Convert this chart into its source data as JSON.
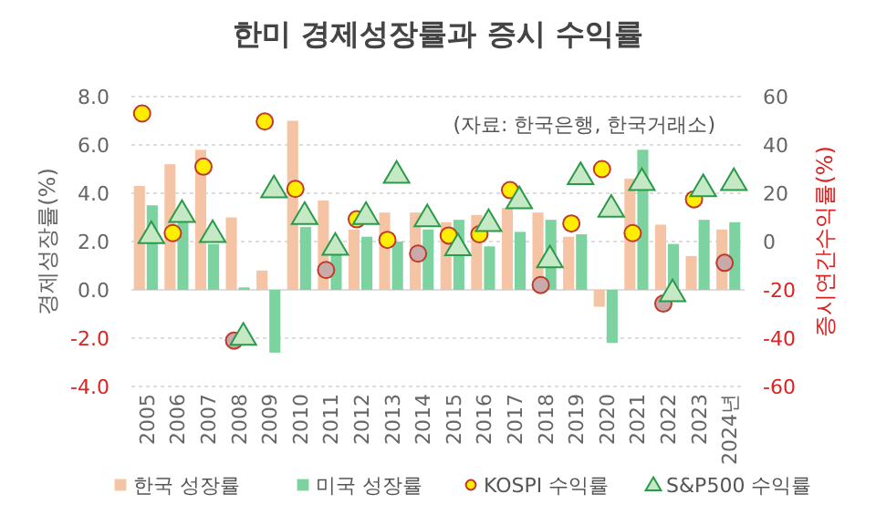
{
  "chart_data": {
    "type": "bar",
    "title": "한미 경제성장률과 증시 수익률",
    "annotations": [
      "(자료: 한국은행, 한국거래소)"
    ],
    "ylabel": "경제성장률(%)",
    "y2label": "증시연간수익률(%)",
    "categories": [
      "2005",
      "2006",
      "2007",
      "2008",
      "2009",
      "2010",
      "2011",
      "2012",
      "2013",
      "2014",
      "2015",
      "2016",
      "2017",
      "2018",
      "2019",
      "2020",
      "2021",
      "2022",
      "2023",
      "2024년"
    ],
    "ylim": [
      -4,
      8
    ],
    "yticks": [
      {
        "value": -4,
        "label": "-4.0"
      },
      {
        "value": -2,
        "label": "-2.0"
      },
      {
        "value": 0,
        "label": "0.0"
      },
      {
        "value": 2,
        "label": "2.0"
      },
      {
        "value": 4,
        "label": "4.0"
      },
      {
        "value": 6,
        "label": "6.0"
      },
      {
        "value": 8,
        "label": "8.0"
      }
    ],
    "y2lim": [
      -60,
      60
    ],
    "y2ticks": [
      -60,
      -40,
      -20,
      0,
      20,
      40,
      60
    ],
    "grid": "y",
    "legend": "bottom",
    "series": [
      {
        "name": "한국 성장률",
        "color": "#f4c4a4",
        "values": [
          4.3,
          5.2,
          5.8,
          3.0,
          0.8,
          7.0,
          3.7,
          2.5,
          3.2,
          3.2,
          2.8,
          3.1,
          3.4,
          3.2,
          2.2,
          -0.7,
          4.6,
          2.7,
          1.4,
          2.5
        ]
      },
      {
        "name": "미국 성장률",
        "color": "#7dd3a0",
        "values": [
          3.5,
          2.8,
          1.9,
          0.1,
          -2.6,
          2.6,
          1.6,
          2.2,
          2.0,
          2.5,
          2.9,
          1.8,
          2.4,
          2.9,
          2.3,
          -2.2,
          5.8,
          1.9,
          2.9,
          2.8
        ]
      },
      {
        "name": "KOSPI 수익률",
        "type": "scatter",
        "axis": "y2",
        "marker": "circle",
        "color": "#ffee00",
        "colors": [
          "#ffee00",
          "#ffee00",
          "#ffee00",
          "#c9aaaa",
          "#ffee00",
          "#ffee00",
          "#c9aaaa",
          "#ffee00",
          "#ffee00",
          "#c9aaaa",
          "#ffee00",
          "#ffee00",
          "#ffee00",
          "#c9aaaa",
          "#ffee00",
          "#ffee00",
          "#ffee00",
          "#c9aaaa",
          "#ffee00",
          "#c9aaaa"
        ],
        "values": [
          53,
          3.5,
          31,
          -41,
          49.7,
          21.8,
          -11.8,
          9.2,
          0.7,
          -5,
          2.5,
          3,
          21.3,
          -18,
          7.5,
          30,
          3.5,
          -25.7,
          17.5,
          -8.8
        ]
      },
      {
        "name": "S&P500 수익률",
        "type": "scatter",
        "axis": "y2",
        "marker": "triangle",
        "color": "#c5e8c5",
        "values": [
          3,
          11.8,
          3.5,
          -39,
          22,
          11,
          -1.8,
          11,
          28,
          10,
          -2,
          8,
          17.5,
          -7,
          27.5,
          14,
          25,
          -21,
          22.5,
          25
        ]
      }
    ]
  }
}
